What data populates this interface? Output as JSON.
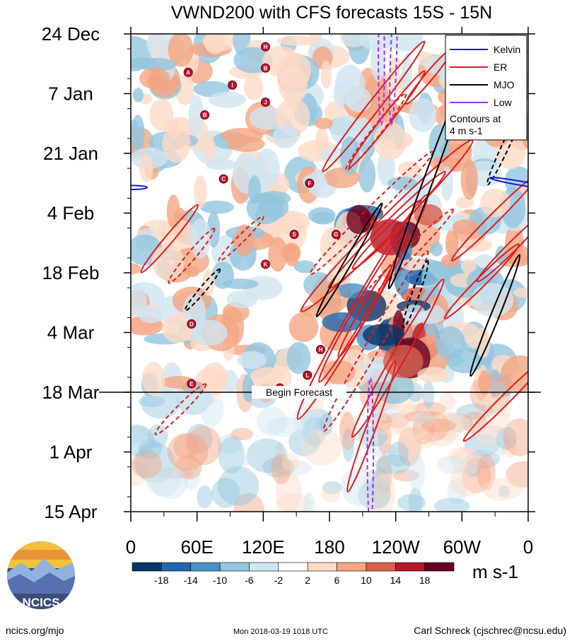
{
  "chart_data": {
    "type": "heatmap",
    "title": "VWND200 with CFS forecasts  15S - 15N",
    "xlabel": "",
    "ylabel": "",
    "x_ticks": [
      "0",
      "60E",
      "120E",
      "180",
      "120W",
      "60W",
      "0"
    ],
    "x_tick_values": [
      0,
      60,
      120,
      180,
      240,
      300,
      360
    ],
    "xlim": [
      0,
      360
    ],
    "y_ticks": [
      "24 Dec",
      "7 Jan",
      "21 Jan",
      "4 Feb",
      "18 Feb",
      "4 Mar",
      "18 Mar",
      "1 Apr",
      "15 Apr"
    ],
    "y_tick_days": [
      0,
      14,
      28,
      42,
      56,
      70,
      84,
      98,
      112
    ],
    "ylim_days": [
      0,
      112
    ],
    "forecast_start_day": 84,
    "forecast_label": "Begin Forecast",
    "colorbar": {
      "levels": [
        "-18",
        "-14",
        "-10",
        "-6",
        "-2",
        "2",
        "6",
        "10",
        "14",
        "18"
      ],
      "colors": [
        "#0a3566",
        "#2166ac",
        "#4a8fc4",
        "#92c5de",
        "#d1e5f0",
        "#ffffff",
        "#fddbc7",
        "#f4a582",
        "#d6604d",
        "#b2182b",
        "#67001f"
      ],
      "units": "m s-1"
    },
    "legend": {
      "position": "top-right",
      "entries": [
        {
          "label": "Kelvin",
          "color": "#1a1acc"
        },
        {
          "label": "ER",
          "color": "#e31a1c"
        },
        {
          "label": "MJO",
          "color": "#000000"
        },
        {
          "label": "Low",
          "color": "#9b30ff"
        }
      ],
      "note": "Contours at\n4 m s-1"
    },
    "contours": [
      {
        "type": "ER",
        "lon": 220,
        "day": 17,
        "len": 38,
        "wid": 8,
        "ang": -52,
        "sign": "pos"
      },
      {
        "type": "ER",
        "lon": 232,
        "day": 20,
        "len": 28,
        "wid": 6,
        "ang": -52,
        "sign": "pos"
      },
      {
        "type": "ER",
        "lon": 222,
        "day": 23,
        "len": 22,
        "wid": 6,
        "ang": -52,
        "sign": "neg"
      },
      {
        "type": "ER",
        "lon": 232,
        "day": 45,
        "len": 56,
        "wid": 14,
        "ang": -45,
        "sign": "pos"
      },
      {
        "type": "ER",
        "lon": 232,
        "day": 46,
        "len": 38,
        "wid": 9,
        "ang": -45,
        "sign": "pos"
      },
      {
        "type": "ER",
        "lon": 232,
        "day": 47,
        "len": 22,
        "wid": 6,
        "ang": -45,
        "sign": "pos"
      },
      {
        "type": "ER",
        "lon": 218,
        "day": 42,
        "len": 40,
        "wid": 8,
        "ang": -45,
        "sign": "neg"
      },
      {
        "type": "ER",
        "lon": 250,
        "day": 52,
        "len": 30,
        "wid": 7,
        "ang": -45,
        "sign": "neg"
      },
      {
        "type": "ER",
        "lon": 210,
        "day": 64,
        "len": 60,
        "wid": 14,
        "ang": -60,
        "sign": "pos"
      },
      {
        "type": "ER",
        "lon": 210,
        "day": 64,
        "len": 40,
        "wid": 9,
        "ang": -60,
        "sign": "pos"
      },
      {
        "type": "ER",
        "lon": 212,
        "day": 65,
        "len": 24,
        "wid": 6,
        "ang": -60,
        "sign": "pos"
      },
      {
        "type": "ER",
        "lon": 222,
        "day": 72,
        "len": 48,
        "wid": 10,
        "ang": -60,
        "sign": "neg"
      },
      {
        "type": "ER",
        "lon": 242,
        "day": 76,
        "len": 42,
        "wid": 9,
        "ang": -60,
        "sign": "pos"
      },
      {
        "type": "ER",
        "lon": 218,
        "day": 92,
        "len": 32,
        "wid": 6,
        "ang": -70,
        "sign": "pos"
      },
      {
        "type": "ER",
        "lon": 330,
        "day": 43,
        "len": 28,
        "wid": 6,
        "ang": -45,
        "sign": "pos"
      },
      {
        "type": "ER",
        "lon": 345,
        "day": 50,
        "len": 22,
        "wid": 6,
        "ang": -45,
        "sign": "pos"
      },
      {
        "type": "ER",
        "lon": 318,
        "day": 58,
        "len": 24,
        "wid": 6,
        "ang": -45,
        "sign": "pos"
      },
      {
        "type": "ER",
        "lon": 338,
        "day": 86,
        "len": 26,
        "wid": 6,
        "ang": -45,
        "sign": "pos"
      },
      {
        "type": "ER",
        "lon": 270,
        "day": 10,
        "len": 16,
        "wid": 5,
        "ang": -50,
        "sign": "pos"
      },
      {
        "type": "ER",
        "lon": 35,
        "day": 48,
        "len": 20,
        "wid": 5,
        "ang": -50,
        "sign": "pos"
      },
      {
        "type": "ER",
        "lon": 55,
        "day": 52,
        "len": 16,
        "wid": 5,
        "ang": -50,
        "sign": "neg"
      },
      {
        "type": "ER",
        "lon": 45,
        "day": 88,
        "len": 16,
        "wid": 5,
        "ang": -45,
        "sign": "neg"
      },
      {
        "type": "ER",
        "lon": 100,
        "day": 48,
        "len": 14,
        "wid": 4,
        "ang": -45,
        "sign": "neg"
      },
      {
        "type": "MJO",
        "lon": 270,
        "day": 34,
        "len": 54,
        "wid": 6,
        "ang": -70,
        "sign": "pos"
      },
      {
        "type": "MJO",
        "lon": 198,
        "day": 53,
        "len": 30,
        "wid": 4,
        "ang": -60,
        "sign": "pos"
      },
      {
        "type": "MJO",
        "lon": 330,
        "day": 66,
        "len": 30,
        "wid": 5,
        "ang": -68,
        "sign": "pos"
      },
      {
        "type": "MJO",
        "lon": 258,
        "day": 61,
        "len": 16,
        "wid": 4,
        "ang": -70,
        "sign": "neg"
      },
      {
        "type": "MJO",
        "lon": 340,
        "day": 26,
        "len": 20,
        "wid": 4,
        "ang": -65,
        "sign": "neg"
      },
      {
        "type": "MJO",
        "lon": 65,
        "day": 60,
        "len": 12,
        "wid": 3,
        "ang": -50,
        "sign": "neg"
      },
      {
        "type": "Low",
        "lon": 238,
        "day": 6,
        "len": 30,
        "wid": 3,
        "ang": -88,
        "sign": "neg"
      },
      {
        "type": "Low",
        "lon": 227,
        "day": 6,
        "len": 30,
        "wid": 3,
        "ang": -90,
        "sign": "neg"
      },
      {
        "type": "Low",
        "lon": 217,
        "day": 98,
        "len": 34,
        "wid": 3,
        "ang": -90,
        "sign": "neg"
      },
      {
        "type": "Kelvin",
        "lon": 2,
        "day": 36,
        "len": 6,
        "wid": 1,
        "ang": 0,
        "sign": "pos"
      },
      {
        "type": "Kelvin",
        "lon": 353,
        "day": 35,
        "len": 14,
        "wid": 1,
        "ang": 10,
        "sign": "pos"
      }
    ],
    "storm_markers": [
      {
        "label": "H",
        "lon": 122,
        "day": 3
      },
      {
        "label": "A",
        "lon": 52,
        "day": 9
      },
      {
        "label": "B",
        "lon": 122,
        "day": 8
      },
      {
        "label": "I",
        "lon": 92,
        "day": 12
      },
      {
        "label": "J",
        "lon": 122,
        "day": 16
      },
      {
        "label": "B",
        "lon": 67,
        "day": 19
      },
      {
        "label": "C",
        "lon": 84,
        "day": 34
      },
      {
        "label": "F",
        "lon": 162,
        "day": 35
      },
      {
        "label": "S",
        "lon": 148,
        "day": 47
      },
      {
        "label": "G",
        "lon": 186,
        "day": 47
      },
      {
        "label": "K",
        "lon": 122,
        "day": 54
      },
      {
        "label": "D",
        "lon": 55,
        "day": 68
      },
      {
        "label": "H",
        "lon": 172,
        "day": 74
      },
      {
        "label": "L",
        "lon": 160,
        "day": 80
      },
      {
        "label": "E",
        "lon": 55,
        "day": 82
      },
      {
        "label": "M",
        "lon": 135,
        "day": 83
      }
    ]
  },
  "footer": {
    "left": "ncics.org/mjo",
    "center": "Mon 2018-03-19 1018 UTC",
    "right": "Carl Schreck (cjschrec@ncsu.edu)",
    "logo_text": "NCICS"
  }
}
